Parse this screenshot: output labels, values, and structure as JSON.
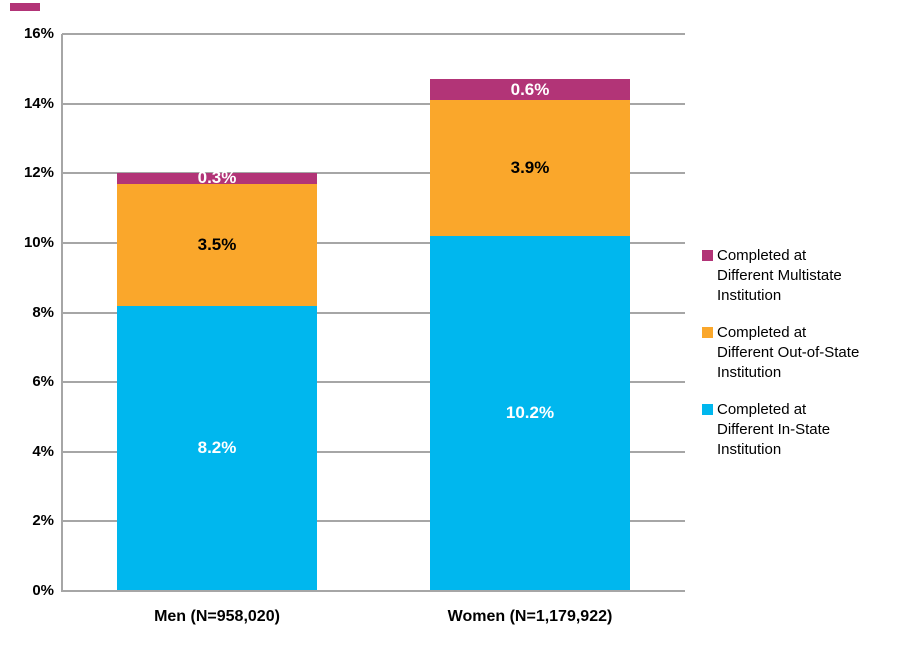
{
  "chart_data": {
    "type": "bar",
    "subtype": "stacked-column",
    "title": "",
    "categories": [
      "Men (N=958,020)",
      "Women (N=1,179,922)"
    ],
    "series": [
      {
        "name": "Completed at\nDifferent In-State\nInstitution",
        "values": [
          8.2,
          10.2
        ],
        "labels": [
          "8.2%",
          "10.2%"
        ],
        "color": "#00B7EE",
        "label_color": "#FFFFFF"
      },
      {
        "name": "Completed at\nDifferent Out-of-State\nInstitution",
        "values": [
          3.5,
          3.9
        ],
        "labels": [
          "3.5%",
          "3.9%"
        ],
        "color": "#FAA72B",
        "label_color": "#000000"
      },
      {
        "name": "Completed at\nDifferent Multistate\nInstitution",
        "values": [
          0.3,
          0.6
        ],
        "labels": [
          "0.3%",
          "0.6%"
        ],
        "color": "#B23477",
        "label_color": "#FFFFFF"
      }
    ],
    "y_axis": {
      "ticks": [
        "0%",
        "2%",
        "4%",
        "6%",
        "8%",
        "10%",
        "12%",
        "14%",
        "16%"
      ],
      "min": 0,
      "max": 16,
      "step": 2
    },
    "xlabel": "",
    "ylabel": "",
    "grid": true,
    "legend_position": "right"
  },
  "colors": {
    "gridline": "#A6A6A6",
    "axis_line": "#A6A6A6",
    "background": "#FFFFFF",
    "corner_mark": "#B23477"
  }
}
